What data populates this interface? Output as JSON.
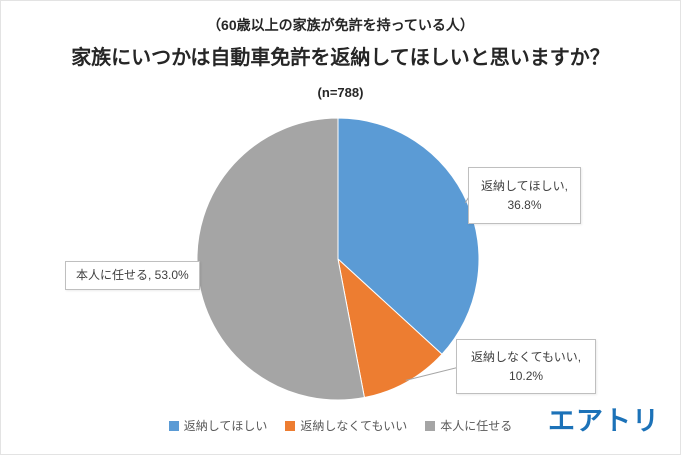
{
  "chart_data": {
    "type": "pie",
    "supertitle": "（60歳以上の家族が免許を持っている人）",
    "title": "家族にいつかは自動車免許を返納してほしいと思いますか？",
    "sample_size_label": "(n=788)",
    "categories": [
      "返納してほしい",
      "返納しなくてもいい",
      "本人に任せる"
    ],
    "values": [
      36.8,
      10.2,
      53.0
    ],
    "unit": "%",
    "colors": [
      "#5B9BD5",
      "#ED7D31",
      "#A5A5A5"
    ],
    "start_angle_deg": 0,
    "direction": "clockwise",
    "legend_position": "bottom",
    "data_labels": [
      {
        "lines": [
          "返納してほしい,",
          "36.8%"
        ]
      },
      {
        "lines": [
          "返納しなくてもいい,",
          "10.2%"
        ]
      },
      {
        "lines": [
          "本人に任せる, 53.0%"
        ]
      }
    ]
  },
  "branding": {
    "logo_text": "エアトリ"
  }
}
